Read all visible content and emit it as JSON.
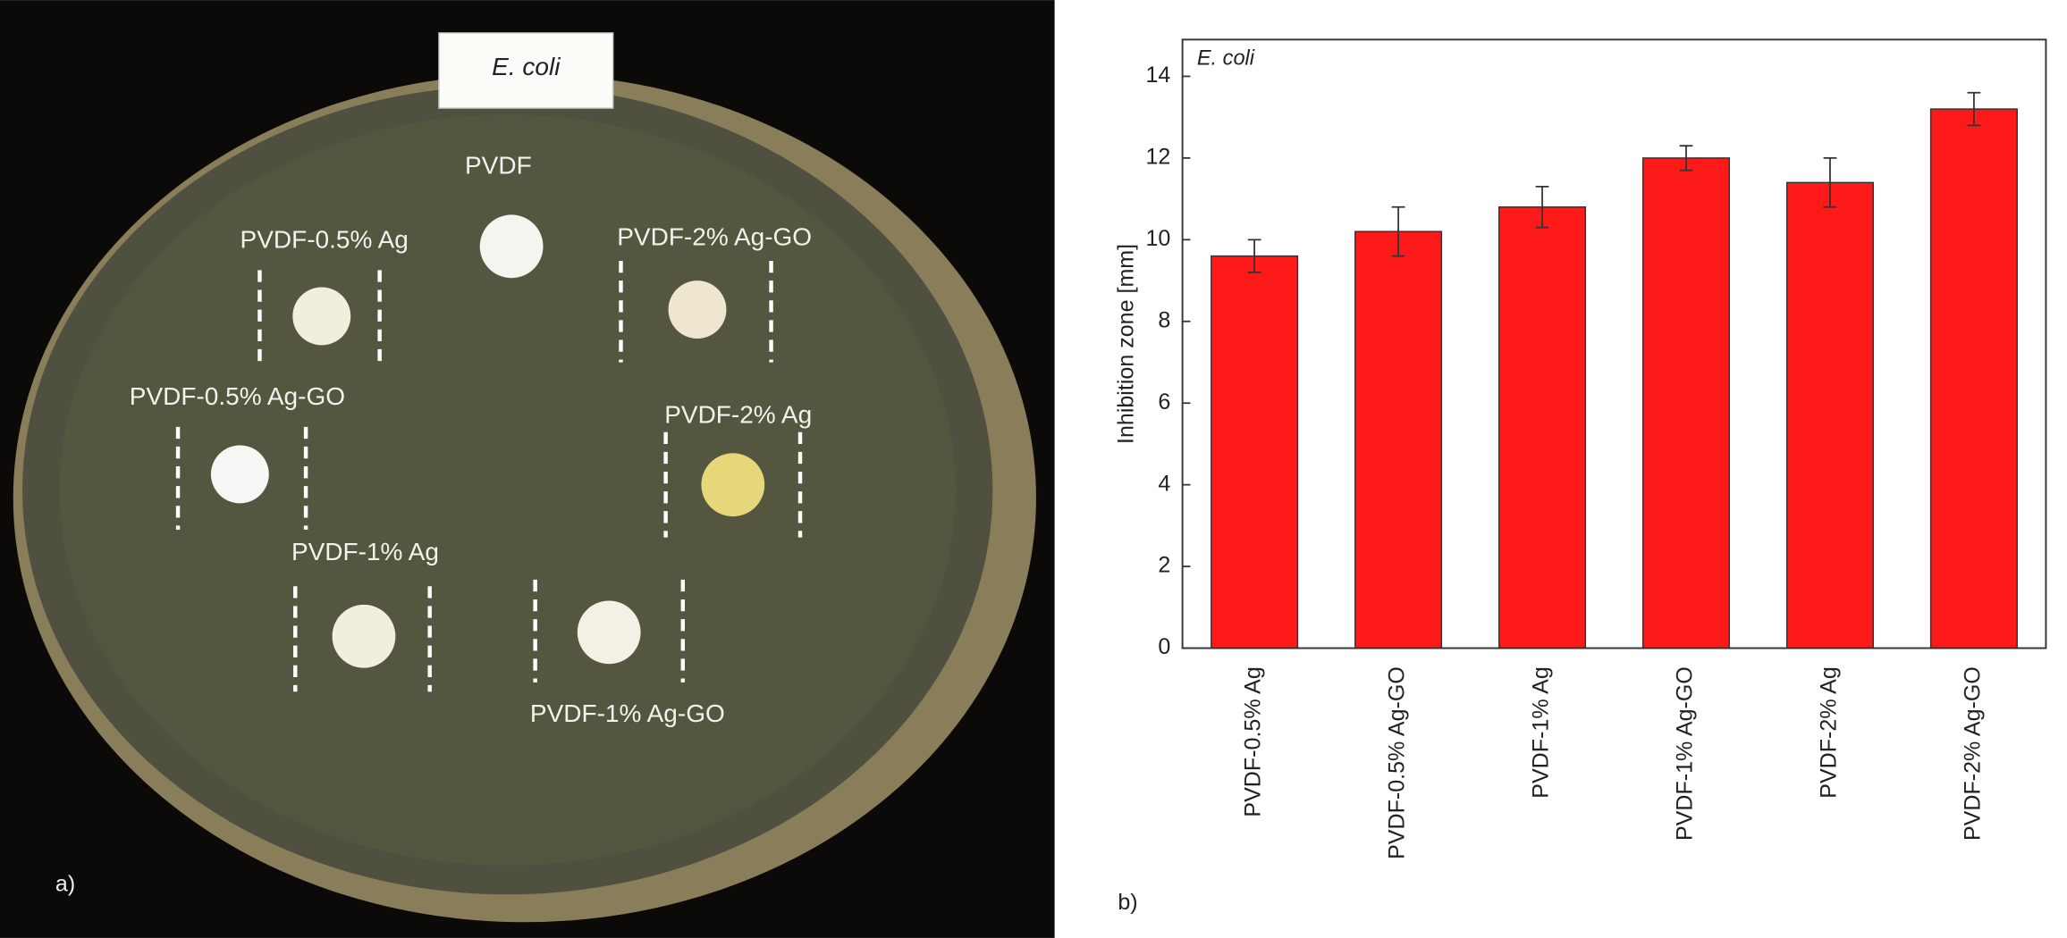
{
  "photo": {
    "label_box": "E. coli",
    "panel": "a)",
    "labels": [
      "PVDF",
      "PVDF-0.5% Ag",
      "PVDF-2% Ag-GO",
      "PVDF-0.5% Ag-GO",
      "PVDF-2% Ag",
      "PVDF-1% Ag",
      "PVDF-1% Ag-GO"
    ]
  },
  "chart_data": {
    "type": "bar",
    "title": "E. coli",
    "panel": "b)",
    "y_label": "Inhibition zone [mm]",
    "categories": [
      "PVDF-0.5% Ag",
      "PVDF-0.5% Ag-GO",
      "PVDF-1% Ag",
      "PVDF-1% Ag-GO",
      "PVDF-2% Ag",
      "PVDF-2% Ag-GO"
    ],
    "values": [
      9.6,
      10.2,
      10.8,
      12.0,
      11.4,
      13.2
    ],
    "errors": [
      0.4,
      0.6,
      0.5,
      0.3,
      0.6,
      0.4
    ],
    "color": "#ff1a1a",
    "ylim": [
      0,
      14.9
    ],
    "yticks": [
      0,
      2,
      4,
      6,
      8,
      10,
      12,
      14
    ]
  }
}
